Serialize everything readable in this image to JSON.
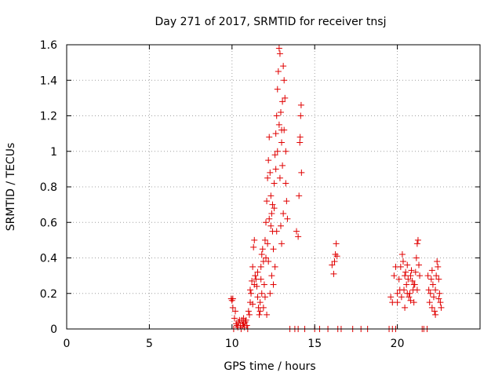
{
  "chart_data": {
    "type": "scatter",
    "title": "Day 271 of 2017, SRMTID for receiver tnsj",
    "xlabel": "GPS time / hours",
    "ylabel": "SRMTID / TECUs",
    "xlim": [
      0,
      25
    ],
    "ylim": [
      0,
      1.6
    ],
    "xticks": [
      0,
      5,
      10,
      15,
      20
    ],
    "xtick_labels": [
      "0",
      "5",
      "10",
      "15",
      "20"
    ],
    "yticks": [
      0,
      0.2,
      0.4,
      0.6,
      0.8,
      1.0,
      1.2,
      1.4,
      1.6
    ],
    "ytick_labels": [
      "0",
      "0.2",
      "0.4",
      "0.6",
      "0.8",
      "1",
      "1.2",
      "1.4",
      "1.6"
    ],
    "grid": true,
    "marker": "+",
    "colors": {
      "series": "#e00000",
      "grid": "#a0a0a0",
      "axis": "#000000"
    },
    "series": [
      {
        "name": "SRMTID",
        "points": [
          [
            9.95,
            0.17
          ],
          [
            10.0,
            0.16
          ],
          [
            10.05,
            0.17
          ],
          [
            10.1,
            0.0
          ],
          [
            10.15,
            0.06
          ],
          [
            10.2,
            0.1
          ],
          [
            10.25,
            0.03
          ],
          [
            10.3,
            0.02
          ],
          [
            10.35,
            0.01
          ],
          [
            10.4,
            0.04
          ],
          [
            10.5,
            0.02
          ],
          [
            10.55,
            0.0
          ],
          [
            10.6,
            0.05
          ],
          [
            10.65,
            0.02
          ],
          [
            10.7,
            0.03
          ],
          [
            10.75,
            0.01
          ],
          [
            10.8,
            0.04
          ],
          [
            10.85,
            0.05
          ],
          [
            10.9,
            0.02
          ],
          [
            10.95,
            0.0
          ],
          [
            11.0,
            0.1
          ],
          [
            11.05,
            0.08
          ],
          [
            11.1,
            0.15
          ],
          [
            11.15,
            0.2
          ],
          [
            11.2,
            0.27
          ],
          [
            11.25,
            0.35
          ],
          [
            11.3,
            0.46
          ],
          [
            11.35,
            0.5
          ],
          [
            11.4,
            0.3
          ],
          [
            11.45,
            0.28
          ],
          [
            11.5,
            0.24
          ],
          [
            11.55,
            0.18
          ],
          [
            11.6,
            0.12
          ],
          [
            11.65,
            0.08
          ],
          [
            11.7,
            0.15
          ],
          [
            11.75,
            0.28
          ],
          [
            11.8,
            0.42
          ],
          [
            11.85,
            0.45
          ],
          [
            11.9,
            0.38
          ],
          [
            11.95,
            0.25
          ],
          [
            12.0,
            0.5
          ],
          [
            12.05,
            0.6
          ],
          [
            12.1,
            0.72
          ],
          [
            12.15,
            0.85
          ],
          [
            12.2,
            0.95
          ],
          [
            12.25,
            1.08
          ],
          [
            12.3,
            0.88
          ],
          [
            12.35,
            0.75
          ],
          [
            12.4,
            0.65
          ],
          [
            12.45,
            0.55
          ],
          [
            12.5,
            0.45
          ],
          [
            12.55,
            0.68
          ],
          [
            12.6,
            0.98
          ],
          [
            12.65,
            1.1
          ],
          [
            12.7,
            1.2
          ],
          [
            12.75,
            1.35
          ],
          [
            12.8,
            1.45
          ],
          [
            12.85,
            1.58
          ],
          [
            12.9,
            1.55
          ],
          [
            12.95,
            1.22
          ],
          [
            13.0,
            1.05
          ],
          [
            13.05,
            0.92
          ],
          [
            13.1,
            1.48
          ],
          [
            13.15,
            1.4
          ],
          [
            13.2,
            1.3
          ],
          [
            13.25,
            1.0
          ],
          [
            13.3,
            0.72
          ],
          [
            13.35,
            0.62
          ],
          [
            12.9,
            0.85
          ],
          [
            12.95,
            0.58
          ],
          [
            13.0,
            0.48
          ],
          [
            12.7,
            0.55
          ],
          [
            12.4,
            0.3
          ],
          [
            12.2,
            0.38
          ],
          [
            12.0,
            0.18
          ],
          [
            11.9,
            0.12
          ],
          [
            11.8,
            0.2
          ],
          [
            11.7,
            0.1
          ],
          [
            12.5,
            0.25
          ],
          [
            13.0,
            1.12
          ],
          [
            13.05,
            1.28
          ],
          [
            13.9,
            0.55
          ],
          [
            14.0,
            0.52
          ],
          [
            14.05,
            0.75
          ],
          [
            14.1,
            1.05
          ],
          [
            14.12,
            1.08
          ],
          [
            14.15,
            1.2
          ],
          [
            14.18,
            1.26
          ],
          [
            14.2,
            0.88
          ],
          [
            14.0,
            0.0
          ],
          [
            13.5,
            0.0
          ],
          [
            13.8,
            0.0
          ],
          [
            14.4,
            0.0
          ],
          [
            15.0,
            0.0
          ],
          [
            15.3,
            0.0
          ],
          [
            15.8,
            0.0
          ],
          [
            16.05,
            0.36
          ],
          [
            16.15,
            0.31
          ],
          [
            16.2,
            0.38
          ],
          [
            16.25,
            0.42
          ],
          [
            16.3,
            0.48
          ],
          [
            16.35,
            0.41
          ],
          [
            16.4,
            0.0
          ],
          [
            16.6,
            0.0
          ],
          [
            17.3,
            0.0
          ],
          [
            17.8,
            0.0
          ],
          [
            18.2,
            0.0
          ],
          [
            19.5,
            0.0
          ],
          [
            19.7,
            0.0
          ],
          [
            19.9,
            0.0
          ],
          [
            19.6,
            0.18
          ],
          [
            19.7,
            0.15
          ],
          [
            19.8,
            0.3
          ],
          [
            19.9,
            0.35
          ],
          [
            20.0,
            0.2
          ],
          [
            20.1,
            0.28
          ],
          [
            20.2,
            0.35
          ],
          [
            20.3,
            0.42
          ],
          [
            20.35,
            0.38
          ],
          [
            20.4,
            0.22
          ],
          [
            20.45,
            0.3
          ],
          [
            20.5,
            0.32
          ],
          [
            20.55,
            0.25
          ],
          [
            20.6,
            0.36
          ],
          [
            20.65,
            0.28
          ],
          [
            20.7,
            0.18
          ],
          [
            20.75,
            0.2
          ],
          [
            20.8,
            0.3
          ],
          [
            20.85,
            0.33
          ],
          [
            20.9,
            0.27
          ],
          [
            20.95,
            0.22
          ],
          [
            21.0,
            0.15
          ],
          [
            21.05,
            0.25
          ],
          [
            21.1,
            0.32
          ],
          [
            21.15,
            0.4
          ],
          [
            21.2,
            0.48
          ],
          [
            21.25,
            0.5
          ],
          [
            21.3,
            0.36
          ],
          [
            21.35,
            0.3
          ],
          [
            21.5,
            0.0
          ],
          [
            21.6,
            0.0
          ],
          [
            21.8,
            0.0
          ],
          [
            21.85,
            0.3
          ],
          [
            21.9,
            0.22
          ],
          [
            21.95,
            0.15
          ],
          [
            22.0,
            0.2
          ],
          [
            22.05,
            0.28
          ],
          [
            22.1,
            0.33
          ],
          [
            22.15,
            0.25
          ],
          [
            22.2,
            0.18
          ],
          [
            22.25,
            0.1
          ],
          [
            22.3,
            0.22
          ],
          [
            22.35,
            0.3
          ],
          [
            22.4,
            0.38
          ],
          [
            22.45,
            0.35
          ],
          [
            22.5,
            0.28
          ],
          [
            22.55,
            0.2
          ],
          [
            22.6,
            0.15
          ],
          [
            22.65,
            0.12
          ],
          [
            20.0,
            0.15
          ],
          [
            20.15,
            0.22
          ],
          [
            20.25,
            0.18
          ],
          [
            20.45,
            0.12
          ],
          [
            20.6,
            0.2
          ],
          [
            20.8,
            0.16
          ],
          [
            21.0,
            0.25
          ],
          [
            21.2,
            0.22
          ],
          [
            22.1,
            0.12
          ],
          [
            22.3,
            0.08
          ],
          [
            22.5,
            0.17
          ],
          [
            10.05,
            0.12
          ],
          [
            10.45,
            0.05
          ],
          [
            10.7,
            0.06
          ],
          [
            11.1,
            0.22
          ],
          [
            11.25,
            0.14
          ],
          [
            11.35,
            0.25
          ],
          [
            11.55,
            0.32
          ],
          [
            11.75,
            0.35
          ],
          [
            12.05,
            0.4
          ],
          [
            12.15,
            0.48
          ],
          [
            12.25,
            0.62
          ],
          [
            12.35,
            0.58
          ],
          [
            12.45,
            0.7
          ],
          [
            12.55,
            0.82
          ],
          [
            12.65,
            0.9
          ],
          [
            12.75,
            1.0
          ],
          [
            12.85,
            1.15
          ],
          [
            13.15,
            1.12
          ],
          [
            13.25,
            0.82
          ],
          [
            13.1,
            0.65
          ],
          [
            12.6,
            0.35
          ],
          [
            12.3,
            0.2
          ],
          [
            12.1,
            0.08
          ]
        ]
      }
    ]
  }
}
